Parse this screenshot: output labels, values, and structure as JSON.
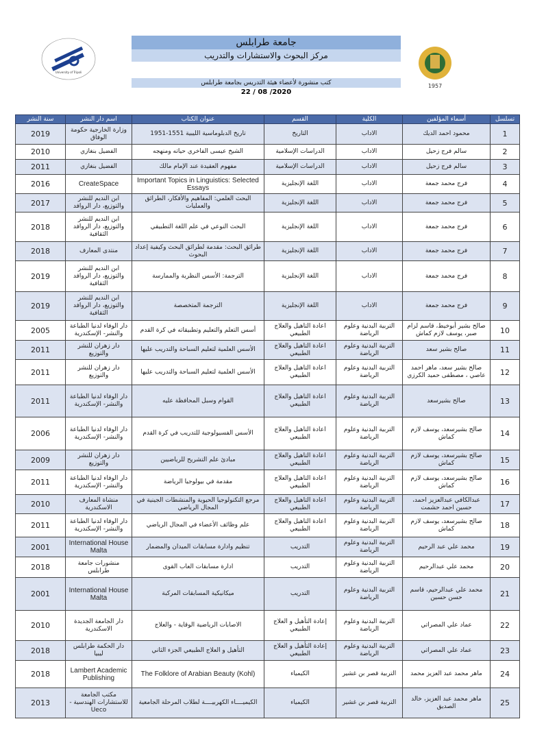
{
  "header": {
    "university": "جامعة طرابلس",
    "center": "مركز البحوث والاستشارات والتدريب",
    "subtitle": "كتب منشورة لأعضاء هيئة التدريس بجامعة طرابلس",
    "date": "22 / 08 /2020",
    "left_logo_text": "University of Tripoli",
    "right_logo_text": "1957"
  },
  "table": {
    "columns": [
      "تسلسل",
      "أسماء المؤلفين",
      "الكلية",
      "القسم",
      "عنوان الكتاب",
      "اسم دار النشر",
      "سنة النشر"
    ],
    "rows": [
      [
        "1",
        "محمود احمد الديك",
        "الاداب",
        "التاريخ",
        "تاريخ الدبلوماسية الليبية 1551-1951",
        "وزارة الخارجية حكومة الوفاق",
        "2019"
      ],
      [
        "2",
        "سالم فرج زحيل",
        "الاداب",
        "الدراسات الإسلامية",
        "الشيخ عيسى الفاخري حياته ومنهجه",
        "الفضيل بنغازي",
        "2010"
      ],
      [
        "3",
        "سالم فرج زحيل",
        "الاداب",
        "الدراسات الإسلامية",
        "مفهوم العقيدة عند الإمام مالك",
        "الفضيل بنغازي",
        "2011"
      ],
      [
        "4",
        "فرج محمد جمعة",
        "الاداب",
        "اللغة الإنجليزية",
        "Important Topics in Linguistics: Selected Essays",
        "CreateSpace",
        "2016"
      ],
      [
        "5",
        "فرج محمد جمعة",
        "الاداب",
        "اللغة الإنجليزية",
        "البحث العلمي: المفاهيم والأفكار، الطرائق والعمليات",
        "ابن النديم للنشر والتوزيع، دار الروافد",
        "2017"
      ],
      [
        "6",
        "فرج محمد جمعة",
        "الاداب",
        "اللغة الإنجليزية",
        "البحث النوعي في علم اللغة التطبيقي",
        "ابن النديم للنشر والتوزيع، دار الروافد الثقافية",
        "2018"
      ],
      [
        "7",
        "فرج محمد جمعة",
        "الاداب",
        "اللغة الإنجليزية",
        "طرائق البحث: مقدمة لطرائق البحث وكيفية إعداد البحوث",
        "منتدى المعارف",
        "2018"
      ],
      [
        "8",
        "فرج محمد جمعة",
        "الاداب",
        "اللغة الإنجليزية",
        "الترجمة: الأسس النظرية والممارسة",
        "ابن النديم للنشر والتوزيع، دار الروافد الثقافية",
        "2019"
      ],
      [
        "9",
        "فرج محمد جمعة",
        "الاداب",
        "اللغة الإنجليزية",
        "الترجمة المتخصصة",
        "ابن النديم للنشر والتوزيع، دار الروافد الثقافية",
        "2019"
      ],
      [
        "10",
        "صالح بشير أبوخيط، قاسم لزام صبر، يوسف لازم كماش",
        "التربية البدنية وعلوم الرياضة",
        "اعادة التاهيل والعلاج الطبيعي",
        "أسس التعلم والتعليم وتطبيقاته في كرة القدم",
        "دار الوفاء لدنيا الطباعة والنشر- الإسكندرية",
        "2005"
      ],
      [
        "11",
        "صالح بشير سعد",
        "التربية البدنية وعلوم الرياضة",
        "اعادة التاهيل والعلاج الطبيعي",
        "الأسس العلمية لتعليم السباحة والتدريب عليها",
        "دار زهران للنشر والتوزيع",
        "2011"
      ],
      [
        "12",
        "صالح بشير سعد، ماهر احمد عاصي ، مصطفى حميد الكرزي",
        "التربية البدنية وعلوم الرياضة",
        "اعادة التاهيل والعلاج الطبيعي",
        "الأسس العلمية لتعليم السباحة والتدريب عليها",
        "دار زهران للنشر والتوزيع",
        "2011"
      ],
      [
        "13",
        "صالح بشيرسعد",
        "التربية البدنية وعلوم الرياضة",
        "اعادة التاهيل والعلاج الطبيعي",
        "القوام وسبل المحافظة عليه",
        "دار الوفاء لدنيا الطباعة والنشر- الإسكندرية",
        "2011"
      ],
      [
        "14",
        "صالح بشيرسعد، يوسف لازم كماش",
        "التربية البدنية وعلوم الرياضة",
        "اعادة التاهيل والعلاج الطبيعي",
        "الأسس الفسيولوجية للتدريب في كرة القدم",
        "دار الوفاء لدنيا الطباعة والنشر- الإسكندرية",
        "2006"
      ],
      [
        "15",
        "صالح بشيرسعد، يوسف لازم كماش",
        "التربية البدنية وعلوم الرياضة",
        "اعادة التاهيل والعلاج الطبيعي",
        "مبادئ علم التشريح للرياضيين",
        "دار زهران للنشر والتوزيع",
        "2009"
      ],
      [
        "16",
        "صالح بشيرسعد، يوسف لازم كماش",
        "التربية البدنية وعلوم الرياضة",
        "اعادة التاهيل والعلاج الطبيعي",
        "مقدمة في بيولوجيا الرياضة",
        "دار الوفاء لدنيا الطباعة والنشر- الإسكندرية",
        "2011"
      ],
      [
        "17",
        "عبدالكافي عبدالعزيز احمد، حسين احمد حشمت",
        "التربية البدنية وعلوم الرياضة",
        "اعادة التاهيل والعلاج الطبيعي",
        "مرجع التكنولوجيا الحيوية والمنشطات الجينية في المجال الرياضي",
        "منشاة المعارف الاسكندرية",
        "2010"
      ],
      [
        "18",
        "صالح بشيرسعد، يوسف لازم كماش",
        "التربية البدنية وعلوم الرياضة",
        "اعادة التاهيل والعلاج الطبيعي",
        "علم وظائف الأعضاء في المجال الرياضي",
        "دار الوفاء لدنيا الطباعة والنشر- الإسكندرية",
        "2011"
      ],
      [
        "19",
        "محمد علي عبد الرحيم",
        "التربية البدنية وعلوم الرياضة",
        "التدريب",
        "تنظيم وادارة مسابقات الميدان والمضمار",
        "International House Malta",
        "2001"
      ],
      [
        "20",
        "محمد علي عبدالرحيم",
        "التربية البدنية وعلوم الرياضة",
        "التدريب",
        "ادارة مسابقات العاب القوى",
        "منشورات جامعة طرابلس",
        "2018"
      ],
      [
        "21",
        "محمد علي عبدالرحيم، قاسم حسن حسين",
        "التربية البدنية وعلوم الرياضة",
        "التدريب",
        "ميكانيكية المسابقات المركبة",
        "International House Malta",
        "2001"
      ],
      [
        "22",
        "عماد علي المصراتي",
        "التربية البدنية وعلوم الرياضة",
        "إعادة التأهيل و العلاج الطبيعي",
        "الاصابات الرياضية الوقاية - والعلاج",
        "دار الجامعة الجديدة الاسكندرية",
        "2010"
      ],
      [
        "23",
        "عماد علي المصراتي",
        "التربية البدنية وعلوم الرياضة",
        "إعادة التأهيل و العلاج الطبيعي",
        "التأهيل و العلاج الطبيعي الجزء الثاني",
        "دار الحكمة طرابلس ليبيا",
        "2018"
      ],
      [
        "24",
        "ماهر محمد عبد العزيز محمد",
        "التربية قصر بن غشير",
        "الكيمياء",
        "The Folklore of Arabian Beauty (Kohl)",
        "Lambert Academic Publishing",
        "2018"
      ],
      [
        "25",
        "ماهر محمد عبد العزيز، خالد الصديق",
        "التربية قصر بن غشير",
        "الكيمياء",
        "الكيميــــاء الكهربيــــة لطلاب المرحلة الجامعية",
        "مكتب الجامعة للاستشارات الهندسية - Ueco",
        "2013"
      ]
    ]
  },
  "colors": {
    "header_bg": "#4a6aa8",
    "alt_row": "#dce3f1",
    "band_dark": "#8fb0dc",
    "band_light": "#c5d6ee"
  }
}
